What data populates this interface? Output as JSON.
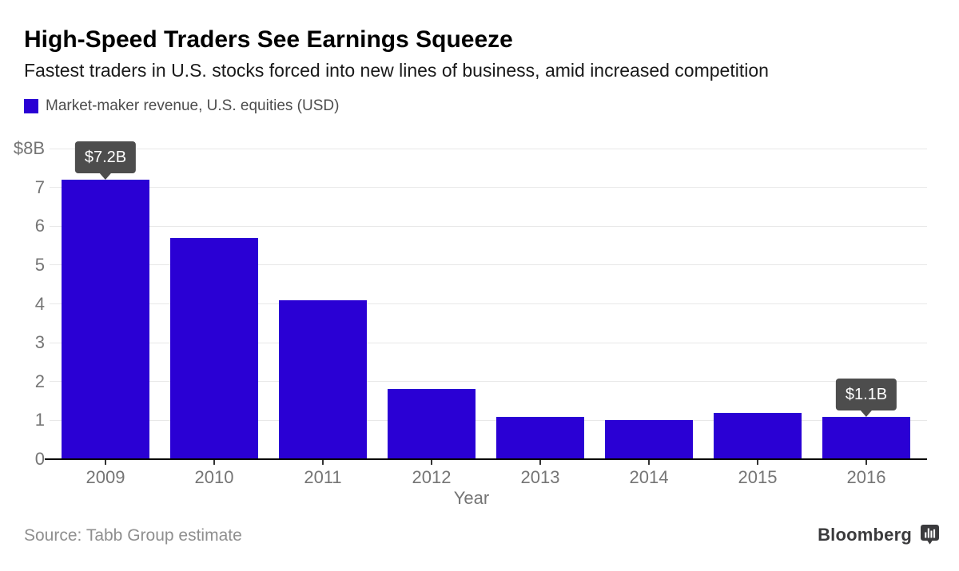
{
  "header": {
    "title": "High-Speed Traders See Earnings Squeeze",
    "subtitle": "Fastest traders in U.S. stocks forced into new lines of business, amid increased competition",
    "legend": {
      "label": "Market-maker revenue, U.S. equities (USD)",
      "swatch_color": "#2a00d4"
    }
  },
  "chart_data": {
    "type": "bar",
    "title": "Market-maker revenue, U.S. equities (USD)",
    "categories": [
      "2009",
      "2010",
      "2011",
      "2012",
      "2013",
      "2014",
      "2015",
      "2016"
    ],
    "values": [
      7.2,
      5.7,
      4.1,
      1.8,
      1.1,
      1.0,
      1.2,
      1.1
    ],
    "xlabel": "Year",
    "ylabel": "",
    "ylim": [
      0,
      8
    ],
    "y_ticks": [
      {
        "value": 8,
        "label": "$8B"
      },
      {
        "value": 7,
        "label": "7"
      },
      {
        "value": 6,
        "label": "6"
      },
      {
        "value": 5,
        "label": "5"
      },
      {
        "value": 4,
        "label": "4"
      },
      {
        "value": 3,
        "label": "3"
      },
      {
        "value": 2,
        "label": "2"
      },
      {
        "value": 1,
        "label": "1"
      },
      {
        "value": 0,
        "label": "0"
      }
    ],
    "grid": true,
    "legend_position": "top-left",
    "bar_color": "#2a00d4",
    "annotations": [
      {
        "category": "2009",
        "label": "$7.2B"
      },
      {
        "category": "2016",
        "label": "$1.1B"
      }
    ],
    "annotation_bg": "#4d4d4d"
  },
  "footer": {
    "source": "Source: Tabb Group estimate",
    "brand": "Bloomberg"
  },
  "colors": {
    "bar": "#2a00d4",
    "tooltip_bg": "#4d4d4d",
    "tooltip_text": "#ffffff",
    "gridline": "#e8e8e8",
    "axis_line": "#000000",
    "axis_label": "#757575",
    "title": "#000000",
    "subtitle": "#1a1a1a",
    "legend_text": "#4d4d4d",
    "source_text": "#8f8f8f",
    "brand_text": "#3b3b3d",
    "background": "#ffffff"
  }
}
